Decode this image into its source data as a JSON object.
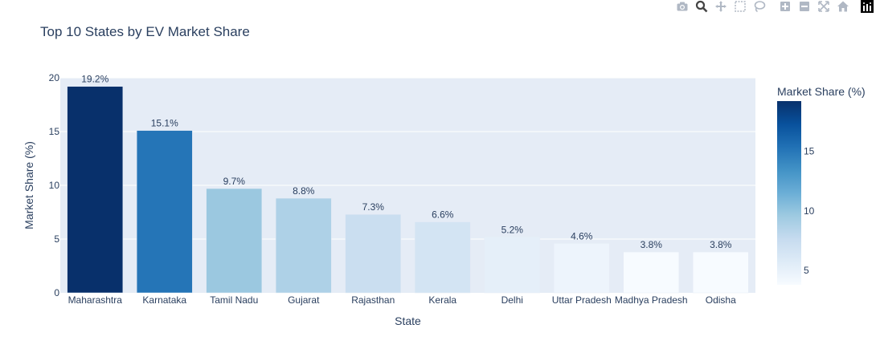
{
  "chart_data": {
    "type": "bar",
    "title": "Top 10 States by EV Market Share",
    "xlabel": "State",
    "ylabel": "Market Share (%)",
    "categories": [
      "Maharashtra",
      "Karnataka",
      "Tamil Nadu",
      "Gujarat",
      "Rajasthan",
      "Kerala",
      "Delhi",
      "Uttar Pradesh",
      "Madhya Pradesh",
      "Odisha"
    ],
    "values": [
      19.2,
      15.1,
      9.7,
      8.8,
      7.3,
      6.6,
      5.2,
      4.6,
      3.8,
      3.8
    ],
    "data_labels": [
      "19.2%",
      "15.1%",
      "9.7%",
      "8.8%",
      "7.3%",
      "6.6%",
      "5.2%",
      "4.6%",
      "3.8%",
      "3.8%"
    ],
    "ylim": [
      0,
      20
    ],
    "yticks": [
      0,
      5,
      10,
      15,
      20
    ],
    "grid": true,
    "colorscale": "Blues",
    "colorbar": {
      "title": "Market Share (%)",
      "range": [
        3.8,
        19.2
      ],
      "ticks": [
        5,
        10,
        15
      ]
    }
  },
  "modebar": {
    "buttons": [
      "camera-icon",
      "zoom-icon",
      "pan-icon",
      "box-select-icon",
      "lasso-select-icon",
      "zoom-in-icon",
      "zoom-out-icon",
      "autoscale-icon",
      "reset-axes-icon",
      "plotly-logo-icon"
    ]
  }
}
